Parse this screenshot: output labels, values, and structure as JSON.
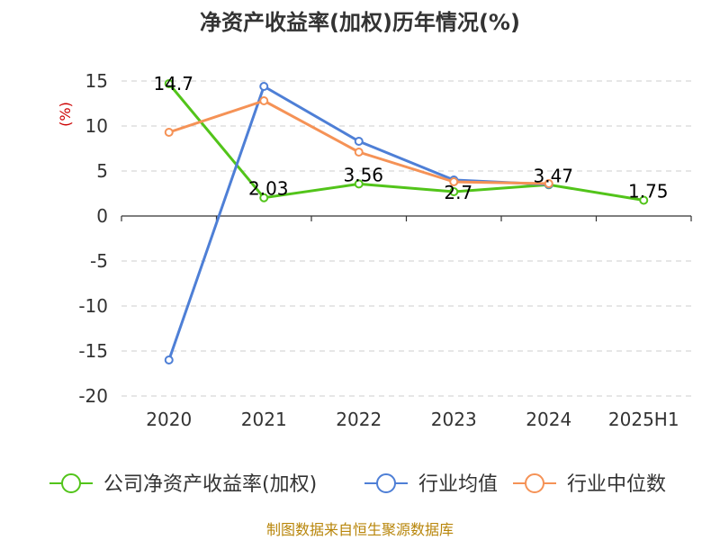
{
  "chart_data": {
    "type": "line",
    "title": "净资产收益率(加权)历年情况(%)",
    "ylabel": "(%)",
    "categories": [
      "2020",
      "2021",
      "2022",
      "2023",
      "2024",
      "2025H1"
    ],
    "ylim": [
      -20,
      15
    ],
    "yticks": [
      15,
      10,
      5,
      0,
      -5,
      -10,
      -15,
      -20
    ],
    "grid": true,
    "legend_position": "bottom",
    "series": [
      {
        "name": "公司净资产收益率(加权)",
        "color": "#52c41a",
        "values": [
          14.7,
          2.03,
          3.56,
          2.7,
          3.47,
          1.75
        ],
        "labels": [
          "14.7",
          "2.03",
          "3.56",
          "2.7",
          "3.47",
          "1.75"
        ]
      },
      {
        "name": "行业均值",
        "color": "#4e7fd6",
        "values": [
          -16.0,
          14.4,
          8.3,
          4.0,
          3.5,
          null
        ]
      },
      {
        "name": "行业中位数",
        "color": "#f59256",
        "values": [
          9.3,
          12.8,
          7.1,
          3.8,
          3.6,
          null
        ]
      }
    ],
    "source": "制图数据来自恒生聚源数据库"
  }
}
